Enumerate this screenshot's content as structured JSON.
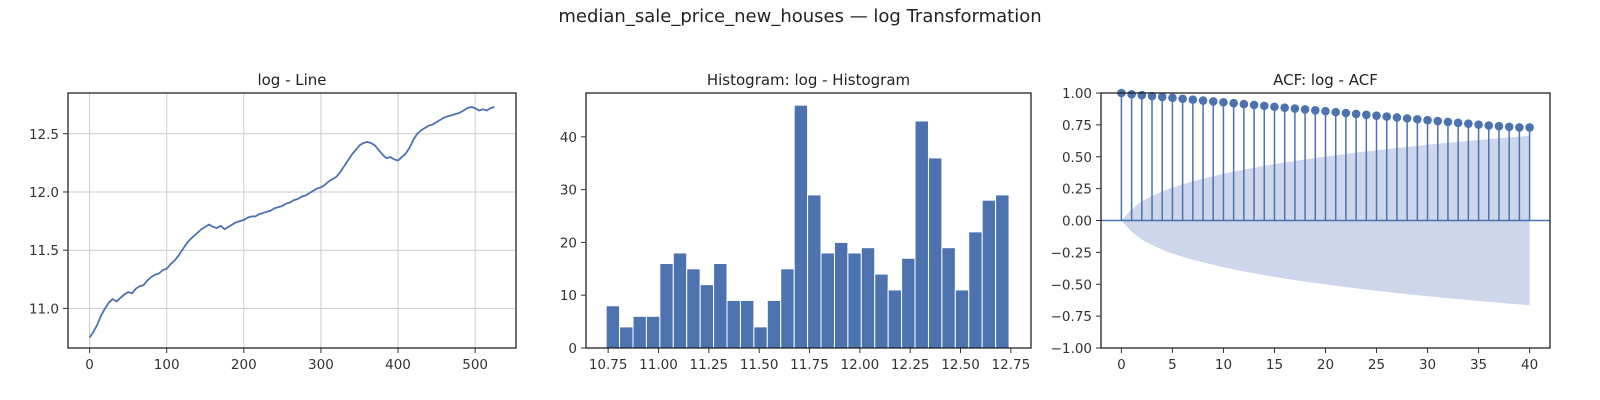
{
  "figure": {
    "suptitle": "median_sale_price_new_houses — log Transformation"
  },
  "chart_data": [
    {
      "type": "line",
      "title": "log - Line",
      "xlabel": "",
      "ylabel": "",
      "xlim": [
        -28,
        553
      ],
      "ylim": [
        10.66,
        12.85
      ],
      "xticks": [
        0,
        100,
        200,
        300,
        400,
        500
      ],
      "yticks": [
        11.0,
        11.5,
        12.0,
        12.5
      ],
      "ytick_labels": [
        "11.0",
        "11.5",
        "12.0",
        "12.5"
      ],
      "grid": true,
      "color": "#4C72B0",
      "series": [
        {
          "points": [
            [
              0,
              10.75
            ],
            [
              5,
              10.8
            ],
            [
              10,
              10.86
            ],
            [
              15,
              10.94
            ],
            [
              20,
              11.0
            ],
            [
              25,
              11.05
            ],
            [
              30,
              11.08
            ],
            [
              35,
              11.06
            ],
            [
              40,
              11.09
            ],
            [
              45,
              11.12
            ],
            [
              50,
              11.14
            ],
            [
              55,
              11.13
            ],
            [
              60,
              11.17
            ],
            [
              65,
              11.19
            ],
            [
              70,
              11.2
            ],
            [
              75,
              11.24
            ],
            [
              80,
              11.27
            ],
            [
              85,
              11.29
            ],
            [
              90,
              11.3
            ],
            [
              95,
              11.33
            ],
            [
              100,
              11.34
            ],
            [
              105,
              11.38
            ],
            [
              110,
              11.41
            ],
            [
              115,
              11.45
            ],
            [
              120,
              11.5
            ],
            [
              125,
              11.55
            ],
            [
              130,
              11.59
            ],
            [
              135,
              11.62
            ],
            [
              140,
              11.65
            ],
            [
              145,
              11.68
            ],
            [
              150,
              11.7
            ],
            [
              155,
              11.72
            ],
            [
              160,
              11.7
            ],
            [
              165,
              11.69
            ],
            [
              170,
              11.71
            ],
            [
              175,
              11.68
            ],
            [
              180,
              11.7
            ],
            [
              185,
              11.72
            ],
            [
              190,
              11.74
            ],
            [
              195,
              11.75
            ],
            [
              200,
              11.76
            ],
            [
              205,
              11.78
            ],
            [
              210,
              11.79
            ],
            [
              215,
              11.79
            ],
            [
              220,
              11.81
            ],
            [
              225,
              11.82
            ],
            [
              230,
              11.83
            ],
            [
              235,
              11.84
            ],
            [
              240,
              11.86
            ],
            [
              245,
              11.87
            ],
            [
              250,
              11.88
            ],
            [
              255,
              11.9
            ],
            [
              260,
              11.91
            ],
            [
              265,
              11.93
            ],
            [
              270,
              11.94
            ],
            [
              275,
              11.96
            ],
            [
              280,
              11.97
            ],
            [
              285,
              11.99
            ],
            [
              290,
              12.01
            ],
            [
              295,
              12.03
            ],
            [
              300,
              12.04
            ],
            [
              305,
              12.06
            ],
            [
              310,
              12.09
            ],
            [
              315,
              12.11
            ],
            [
              320,
              12.13
            ],
            [
              325,
              12.17
            ],
            [
              330,
              12.22
            ],
            [
              335,
              12.27
            ],
            [
              340,
              12.32
            ],
            [
              345,
              12.36
            ],
            [
              350,
              12.4
            ],
            [
              355,
              12.42
            ],
            [
              360,
              12.43
            ],
            [
              365,
              12.42
            ],
            [
              370,
              12.4
            ],
            [
              375,
              12.36
            ],
            [
              380,
              12.32
            ],
            [
              385,
              12.29
            ],
            [
              390,
              12.3
            ],
            [
              395,
              12.28
            ],
            [
              400,
              12.27
            ],
            [
              405,
              12.3
            ],
            [
              410,
              12.33
            ],
            [
              415,
              12.38
            ],
            [
              420,
              12.45
            ],
            [
              425,
              12.5
            ],
            [
              430,
              12.53
            ],
            [
              435,
              12.55
            ],
            [
              440,
              12.57
            ],
            [
              445,
              12.58
            ],
            [
              450,
              12.6
            ],
            [
              455,
              12.62
            ],
            [
              460,
              12.64
            ],
            [
              465,
              12.65
            ],
            [
              470,
              12.66
            ],
            [
              475,
              12.67
            ],
            [
              480,
              12.68
            ],
            [
              485,
              12.7
            ],
            [
              490,
              12.72
            ],
            [
              495,
              12.73
            ],
            [
              500,
              12.72
            ],
            [
              505,
              12.7
            ],
            [
              510,
              12.71
            ],
            [
              515,
              12.7
            ],
            [
              520,
              12.72
            ],
            [
              525,
              12.73
            ]
          ]
        }
      ]
    },
    {
      "type": "bar",
      "title": "Histogram: log - Histogram",
      "xlabel": "",
      "ylabel": "",
      "xlim": [
        10.64,
        12.85
      ],
      "ylim": [
        0,
        48.3
      ],
      "xticks": [
        10.75,
        11.0,
        11.25,
        11.5,
        11.75,
        12.0,
        12.25,
        12.5,
        12.75
      ],
      "xtick_labels": [
        "10.75",
        "11.00",
        "11.25",
        "11.50",
        "11.75",
        "12.00",
        "12.25",
        "12.50",
        "12.75"
      ],
      "yticks": [
        0,
        10,
        20,
        30,
        40
      ],
      "grid": false,
      "color": "#4C72B0",
      "bin_start": 10.74,
      "bin_width": 0.0667,
      "values": [
        8,
        4,
        6,
        6,
        16,
        18,
        15,
        12,
        16,
        9,
        9,
        4,
        9,
        15,
        46,
        29,
        18,
        20,
        18,
        19,
        14,
        11,
        17,
        43,
        36,
        19,
        11,
        22,
        28,
        29
      ]
    },
    {
      "type": "stem",
      "title": "ACF: log - ACF",
      "xlabel": "",
      "ylabel": "",
      "xlim": [
        -2,
        42
      ],
      "ylim": [
        -1.0,
        1.0
      ],
      "xticks": [
        0,
        5,
        10,
        15,
        20,
        25,
        30,
        35,
        40
      ],
      "yticks": [
        -1.0,
        -0.75,
        -0.5,
        -0.25,
        0.0,
        0.25,
        0.5,
        0.75,
        1.0
      ],
      "ytick_labels": [
        "−1.00",
        "−0.75",
        "−0.50",
        "−0.25",
        "0.00",
        "0.25",
        "0.50",
        "0.75",
        "1.00"
      ],
      "grid": false,
      "color": "#4C72B0",
      "band_color": "#cdd6ea",
      "lags": [
        0,
        1,
        2,
        3,
        4,
        5,
        6,
        7,
        8,
        9,
        10,
        11,
        12,
        13,
        14,
        15,
        16,
        17,
        18,
        19,
        20,
        21,
        22,
        23,
        24,
        25,
        26,
        27,
        28,
        29,
        30,
        31,
        32,
        33,
        34,
        35,
        36,
        37,
        38,
        39,
        40
      ],
      "acf": [
        1.0,
        0.99,
        0.983,
        0.976,
        0.969,
        0.962,
        0.955,
        0.948,
        0.941,
        0.934,
        0.927,
        0.92,
        0.913,
        0.906,
        0.899,
        0.892,
        0.885,
        0.878,
        0.871,
        0.864,
        0.857,
        0.85,
        0.843,
        0.836,
        0.829,
        0.822,
        0.815,
        0.808,
        0.801,
        0.794,
        0.787,
        0.78,
        0.773,
        0.766,
        0.759,
        0.752,
        0.745,
        0.74,
        0.735,
        0.73,
        0.73
      ],
      "confint_upper": [
        0.0,
        0.087,
        0.15,
        0.193,
        0.228,
        0.258,
        0.284,
        0.307,
        0.328,
        0.348,
        0.366,
        0.383,
        0.399,
        0.414,
        0.428,
        0.442,
        0.455,
        0.467,
        0.479,
        0.49,
        0.501,
        0.512,
        0.522,
        0.532,
        0.542,
        0.551,
        0.56,
        0.569,
        0.577,
        0.586,
        0.594,
        0.602,
        0.609,
        0.617,
        0.624,
        0.631,
        0.638,
        0.645,
        0.652,
        0.658,
        0.665
      ]
    }
  ]
}
